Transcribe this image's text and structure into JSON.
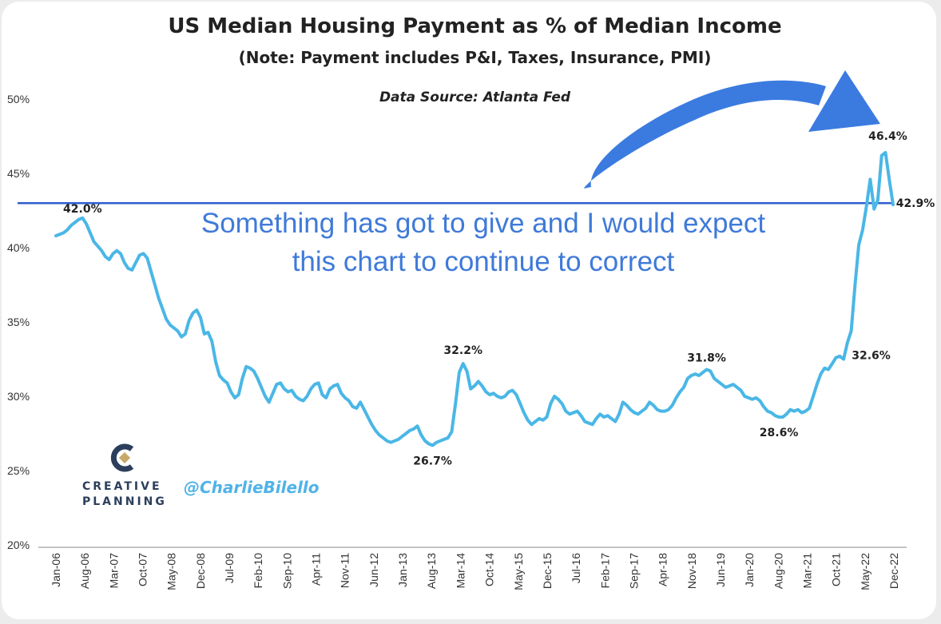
{
  "chart_data": {
    "type": "line",
    "title": "US Median Housing Payment as % of Median Income",
    "subtitle": "(Note: Payment includes P&I, Taxes, Insurance, PMI)",
    "source": "Data Source: Atlanta Fed",
    "ylim": [
      20,
      50
    ],
    "yticks": [
      "20%",
      "25%",
      "30%",
      "35%",
      "40%",
      "45%",
      "50%"
    ],
    "xtick_labels": [
      "Jan-06",
      "Aug-06",
      "Mar-07",
      "Oct-07",
      "May-08",
      "Dec-08",
      "Jul-09",
      "Feb-10",
      "Sep-10",
      "Apr-11",
      "Nov-11",
      "Jun-12",
      "Jan-13",
      "Aug-13",
      "Mar-14",
      "Oct-14",
      "May-15",
      "Dec-15",
      "Jul-16",
      "Feb-17",
      "Sep-17",
      "Apr-18",
      "Nov-18",
      "Jun-19",
      "Jan-20",
      "Aug-20",
      "Mar-21",
      "Oct-21",
      "May-22",
      "Dec-22"
    ],
    "grid": false,
    "series": [
      {
        "color": "#4ab7e6",
        "points": [
          [
            0,
            40.8
          ],
          [
            1,
            40.9
          ],
          [
            2,
            41.0
          ],
          [
            3,
            41.2
          ],
          [
            4,
            41.5
          ],
          [
            5,
            41.7
          ],
          [
            6,
            41.9
          ],
          [
            7,
            42.0
          ],
          [
            8,
            41.6
          ],
          [
            9,
            41.0
          ],
          [
            10,
            40.4
          ],
          [
            11,
            40.1
          ],
          [
            12,
            39.8
          ],
          [
            13,
            39.4
          ],
          [
            14,
            39.2
          ],
          [
            15,
            39.6
          ],
          [
            16,
            39.8
          ],
          [
            17,
            39.6
          ],
          [
            18,
            39.0
          ],
          [
            19,
            38.6
          ],
          [
            20,
            38.5
          ],
          [
            21,
            39.0
          ],
          [
            22,
            39.5
          ],
          [
            23,
            39.6
          ],
          [
            24,
            39.3
          ],
          [
            25,
            38.4
          ],
          [
            26,
            37.5
          ],
          [
            27,
            36.6
          ],
          [
            28,
            35.9
          ],
          [
            29,
            35.2
          ],
          [
            30,
            34.8
          ],
          [
            31,
            34.6
          ],
          [
            32,
            34.4
          ],
          [
            33,
            34.0
          ],
          [
            34,
            34.2
          ],
          [
            35,
            35.1
          ],
          [
            36,
            35.6
          ],
          [
            37,
            35.8
          ],
          [
            38,
            35.3
          ],
          [
            39,
            34.2
          ],
          [
            40,
            34.3
          ],
          [
            41,
            33.7
          ],
          [
            42,
            32.3
          ],
          [
            43,
            31.4
          ],
          [
            44,
            31.1
          ],
          [
            45,
            30.9
          ],
          [
            46,
            30.3
          ],
          [
            47,
            29.9
          ],
          [
            48,
            30.1
          ],
          [
            49,
            31.2
          ],
          [
            50,
            32.0
          ],
          [
            51,
            31.9
          ],
          [
            52,
            31.7
          ],
          [
            53,
            31.2
          ],
          [
            54,
            30.6
          ],
          [
            55,
            30.0
          ],
          [
            56,
            29.6
          ],
          [
            57,
            30.2
          ],
          [
            58,
            30.8
          ],
          [
            59,
            30.9
          ],
          [
            60,
            30.5
          ],
          [
            61,
            30.3
          ],
          [
            62,
            30.4
          ],
          [
            63,
            30.0
          ],
          [
            64,
            29.8
          ],
          [
            65,
            29.7
          ],
          [
            66,
            30.0
          ],
          [
            67,
            30.5
          ],
          [
            68,
            30.8
          ],
          [
            69,
            30.9
          ],
          [
            70,
            30.1
          ],
          [
            71,
            29.9
          ],
          [
            72,
            30.5
          ],
          [
            73,
            30.7
          ],
          [
            74,
            30.8
          ],
          [
            75,
            30.2
          ],
          [
            76,
            29.9
          ],
          [
            77,
            29.7
          ],
          [
            78,
            29.3
          ],
          [
            79,
            29.2
          ],
          [
            80,
            29.6
          ],
          [
            81,
            29.1
          ],
          [
            82,
            28.6
          ],
          [
            83,
            28.1
          ],
          [
            84,
            27.7
          ],
          [
            85,
            27.4
          ],
          [
            86,
            27.2
          ],
          [
            87,
            27.0
          ],
          [
            88,
            26.9
          ],
          [
            89,
            27.0
          ],
          [
            90,
            27.1
          ],
          [
            91,
            27.3
          ],
          [
            92,
            27.5
          ],
          [
            93,
            27.7
          ],
          [
            94,
            27.8
          ],
          [
            95,
            28.0
          ],
          [
            96,
            27.4
          ],
          [
            97,
            27.0
          ],
          [
            98,
            26.8
          ],
          [
            99,
            26.7
          ],
          [
            100,
            26.9
          ],
          [
            101,
            27.0
          ],
          [
            102,
            27.1
          ],
          [
            103,
            27.2
          ],
          [
            104,
            27.6
          ],
          [
            105,
            29.5
          ],
          [
            106,
            31.6
          ],
          [
            107,
            32.2
          ],
          [
            108,
            31.7
          ],
          [
            109,
            30.5
          ],
          [
            110,
            30.7
          ],
          [
            111,
            31.0
          ],
          [
            112,
            30.7
          ],
          [
            113,
            30.3
          ],
          [
            114,
            30.1
          ],
          [
            115,
            30.2
          ],
          [
            116,
            30.0
          ],
          [
            117,
            29.9
          ],
          [
            118,
            30.0
          ],
          [
            119,
            30.3
          ],
          [
            120,
            30.4
          ],
          [
            121,
            30.1
          ],
          [
            122,
            29.5
          ],
          [
            123,
            28.9
          ],
          [
            124,
            28.4
          ],
          [
            125,
            28.1
          ],
          [
            126,
            28.3
          ],
          [
            127,
            28.5
          ],
          [
            128,
            28.4
          ],
          [
            129,
            28.6
          ],
          [
            130,
            29.5
          ],
          [
            131,
            30.0
          ],
          [
            132,
            29.8
          ],
          [
            133,
            29.5
          ],
          [
            134,
            29.0
          ],
          [
            135,
            28.8
          ],
          [
            136,
            28.9
          ],
          [
            137,
            29.0
          ],
          [
            138,
            28.7
          ],
          [
            139,
            28.3
          ],
          [
            140,
            28.2
          ],
          [
            141,
            28.1
          ],
          [
            142,
            28.5
          ],
          [
            143,
            28.8
          ],
          [
            144,
            28.6
          ],
          [
            145,
            28.7
          ],
          [
            146,
            28.5
          ],
          [
            147,
            28.3
          ],
          [
            148,
            28.8
          ],
          [
            149,
            29.6
          ],
          [
            150,
            29.4
          ],
          [
            151,
            29.1
          ],
          [
            152,
            28.9
          ],
          [
            153,
            28.8
          ],
          [
            154,
            29.0
          ],
          [
            155,
            29.2
          ],
          [
            156,
            29.6
          ],
          [
            157,
            29.4
          ],
          [
            158,
            29.1
          ],
          [
            159,
            29.0
          ],
          [
            160,
            29.0
          ],
          [
            161,
            29.1
          ],
          [
            162,
            29.4
          ],
          [
            163,
            29.9
          ],
          [
            164,
            30.3
          ],
          [
            165,
            30.6
          ],
          [
            166,
            31.2
          ],
          [
            167,
            31.4
          ],
          [
            168,
            31.5
          ],
          [
            169,
            31.4
          ],
          [
            170,
            31.6
          ],
          [
            171,
            31.8
          ],
          [
            172,
            31.7
          ],
          [
            173,
            31.2
          ],
          [
            174,
            31.0
          ],
          [
            175,
            30.8
          ],
          [
            176,
            30.6
          ],
          [
            177,
            30.7
          ],
          [
            178,
            30.8
          ],
          [
            179,
            30.6
          ],
          [
            180,
            30.4
          ],
          [
            181,
            30.0
          ],
          [
            182,
            29.9
          ],
          [
            183,
            29.8
          ],
          [
            184,
            29.9
          ],
          [
            185,
            29.7
          ],
          [
            186,
            29.3
          ],
          [
            187,
            29.0
          ],
          [
            188,
            28.9
          ],
          [
            189,
            28.7
          ],
          [
            190,
            28.6
          ],
          [
            191,
            28.6
          ],
          [
            192,
            28.8
          ],
          [
            193,
            29.1
          ],
          [
            194,
            29.0
          ],
          [
            195,
            29.1
          ],
          [
            196,
            28.9
          ],
          [
            197,
            29.0
          ],
          [
            198,
            29.2
          ],
          [
            199,
            30.0
          ],
          [
            200,
            30.8
          ],
          [
            201,
            31.5
          ],
          [
            202,
            31.9
          ],
          [
            203,
            31.8
          ],
          [
            204,
            32.2
          ],
          [
            205,
            32.6
          ],
          [
            206,
            32.7
          ],
          [
            207,
            32.5
          ],
          [
            208,
            33.6
          ],
          [
            209,
            34.4
          ],
          [
            210,
            37.5
          ],
          [
            211,
            40.2
          ],
          [
            212,
            41.2
          ],
          [
            213,
            42.8
          ],
          [
            214,
            44.6
          ],
          [
            215,
            42.6
          ],
          [
            216,
            43.2
          ],
          [
            217,
            46.2
          ],
          [
            218,
            46.4
          ],
          [
            219,
            44.6
          ],
          [
            220,
            42.9
          ]
        ]
      }
    ],
    "data_labels": [
      {
        "text": "42.0%",
        "i": 7,
        "y": 42.0
      },
      {
        "text": "26.7%",
        "i": 99,
        "y": 26.7
      },
      {
        "text": "32.2%",
        "i": 107,
        "y": 32.2
      },
      {
        "text": "31.8%",
        "i": 171,
        "y": 31.8
      },
      {
        "text": "28.6%",
        "i": 190,
        "y": 28.6
      },
      {
        "text": "32.6%",
        "i": 205,
        "y": 32.6
      },
      {
        "text": "46.4%",
        "i": 218,
        "y": 46.4
      },
      {
        "text": "42.9%",
        "i": 220,
        "y": 42.9
      }
    ],
    "reference_line": {
      "y": 43.0,
      "color": "#2f5ecf"
    },
    "annotation": "Something has got to give and I would expect this chart to continue to correct",
    "arrow_color": "#3b7be0"
  },
  "branding": {
    "logo_line1": "CREATIVE",
    "logo_line2": "PLANNING",
    "handle": "@CharlieBilello"
  },
  "colors": {
    "line": "#4ab7e6",
    "annotation_text": "#3f7ad8",
    "reference_line": "#2f5ecf",
    "arrow": "#3b7be0",
    "logo_navy": "#2c3e5c",
    "logo_gold": "#c9a96a"
  }
}
